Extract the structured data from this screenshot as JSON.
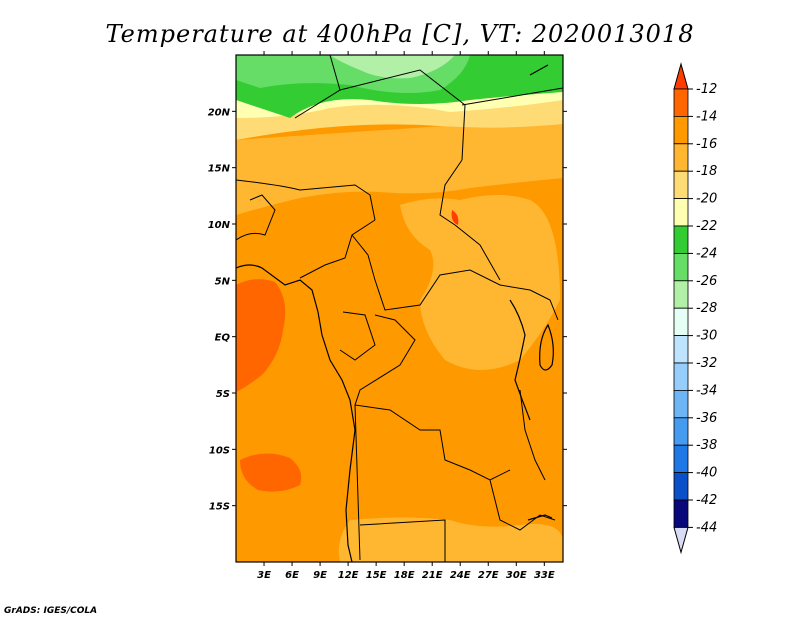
{
  "title": "Temperature at 400hPa [C], VT: 2020013018",
  "credit": "GrADS: IGES/COLA",
  "map": {
    "lon_labels": [
      "3E",
      "6E",
      "9E",
      "12E",
      "15E",
      "18E",
      "21E",
      "24E",
      "27E",
      "30E",
      "33E"
    ],
    "lon_values": [
      3,
      6,
      9,
      12,
      15,
      18,
      21,
      24,
      27,
      30,
      33
    ],
    "lat_labels": [
      "20N",
      "15N",
      "10N",
      "5N",
      "EQ",
      "5S",
      "10S",
      "15S"
    ],
    "lat_values": [
      20,
      15,
      10,
      5,
      0,
      -5,
      -10,
      -15
    ],
    "lon_range": [
      0,
      35
    ],
    "lat_range": [
      -20,
      25
    ]
  },
  "colorbar": {
    "labels": [
      "-12",
      "-14",
      "-16",
      "-18",
      "-20",
      "-22",
      "-24",
      "-26",
      "-28",
      "-30",
      "-32",
      "-34",
      "-36",
      "-38",
      "-40",
      "-42",
      "-44"
    ],
    "colors": [
      "#ff3d00",
      "#ff6600",
      "#ff9900",
      "#ffb732",
      "#ffdb75",
      "#ffffb2",
      "#33cc33",
      "#66dd66",
      "#b2f0a8",
      "#e6fff5",
      "#bde3ff",
      "#96cdfa",
      "#6eb5f5",
      "#459bf0",
      "#1e78e6",
      "#0a50c8",
      "#08087a",
      "#d8dcf5"
    ]
  }
}
